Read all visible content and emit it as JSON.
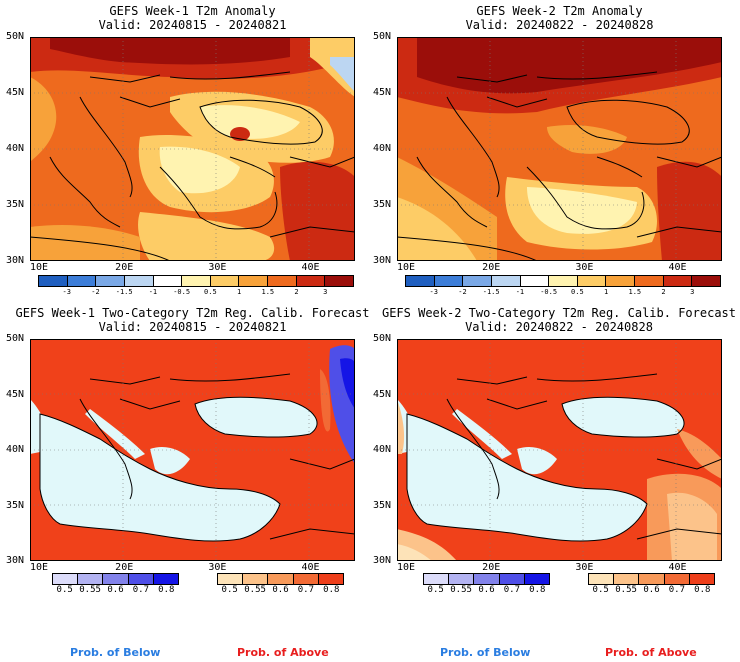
{
  "panels": [
    {
      "title": "GEFS Week-1 T2m Anomaly",
      "valid": "Valid: 20240815 - 20240821"
    },
    {
      "title": "GEFS Week-2 T2m Anomaly",
      "valid": "Valid: 20240822 - 20240828"
    },
    {
      "title": "GEFS Week-1 Two-Category T2m Reg. Calib. Forecast",
      "valid": "Valid: 20240815 - 20240821"
    },
    {
      "title": "GEFS Week-2 Two-Category T2m Reg. Calib. Forecast",
      "valid": "Valid: 20240822 - 20240828"
    }
  ],
  "lat_labels": [
    "50N",
    "45N",
    "40N",
    "35N",
    "30N"
  ],
  "lon_labels": [
    "10E",
    "20E",
    "30E",
    "40E"
  ],
  "anomaly_scale": {
    "ticks": [
      "-3",
      "-2",
      "-1.5",
      "-1",
      "-0.5",
      "0.5",
      "1",
      "1.5",
      "2",
      "3"
    ],
    "colors": [
      "#1f5fc0",
      "#3c7dd8",
      "#7aa8e6",
      "#bcd6f2",
      "#ffffff",
      "#fff3b0",
      "#fdcc66",
      "#f7a23a",
      "#ee6a1e",
      "#cc2a12",
      "#9b0e0a"
    ]
  },
  "below_scale": {
    "ticks": [
      "0.5",
      "0.55",
      "0.6",
      "0.7",
      "0.8"
    ],
    "colors": [
      "#dcdcfa",
      "#b3b3f2",
      "#8282ea",
      "#4f4fe8",
      "#1515e6"
    ]
  },
  "above_scale": {
    "ticks": [
      "0.5",
      "0.55",
      "0.6",
      "0.7",
      "0.8"
    ],
    "colors": [
      "#fde3b8",
      "#fcc38a",
      "#f89a5a",
      "#f26a35",
      "#ee3e1a"
    ]
  },
  "prob_below_label": "Prob. of Below",
  "prob_above_label": "Prob. of Above",
  "colors": {
    "ocean_light": "#e1f8fa",
    "prob_above": "#f0411a",
    "below_text": "#2a7de1",
    "above_text": "#e81e1e"
  }
}
